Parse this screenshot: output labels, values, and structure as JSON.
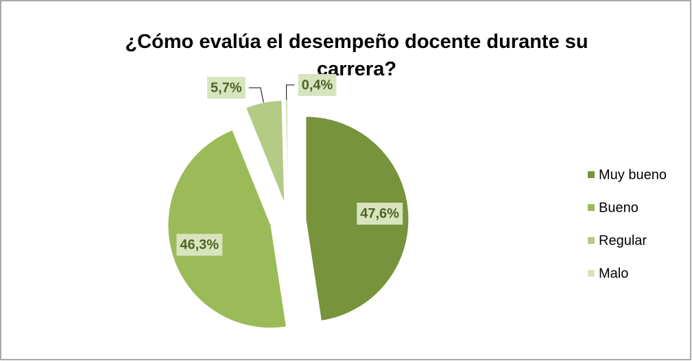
{
  "chart_data": {
    "type": "pie",
    "title": "¿Cómo evalúa el desempeño docente durante su carrera?",
    "categories": [
      "Muy bueno",
      "Bueno",
      "Regular",
      "Malo"
    ],
    "values": [
      47.6,
      46.3,
      5.7,
      0.4
    ],
    "value_labels": [
      "47,6%",
      "46,3%",
      "5,7%",
      "0,4%"
    ],
    "colors": [
      "#77933c",
      "#9bbb59",
      "#b3cb85",
      "#d7e4bd"
    ],
    "legend": "right"
  }
}
